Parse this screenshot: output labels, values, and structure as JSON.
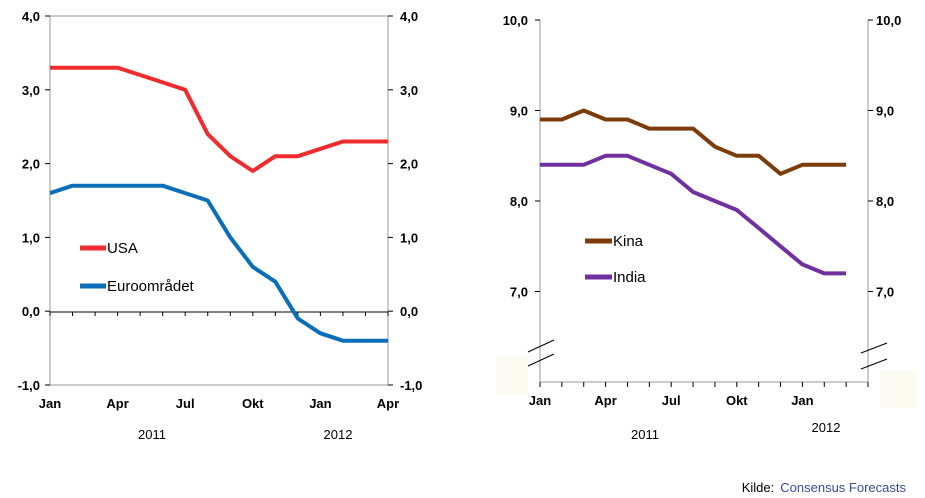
{
  "chart_data": [
    {
      "type": "line",
      "x": [
        "Jan",
        "Feb",
        "Mar",
        "Apr",
        "May",
        "Jun",
        "Jul",
        "Aug",
        "Sep",
        "Oct",
        "Nov",
        "Dec",
        "Jan",
        "Feb",
        "Mar",
        "Apr"
      ],
      "x_tick_labels": [
        "Jan",
        "Apr",
        "Jul",
        "Okt",
        "Jan",
        "Apr"
      ],
      "years": [
        "2011",
        "2012"
      ],
      "ylim": [
        -1.0,
        4.0
      ],
      "y_tick_labels": [
        "4,0",
        "3,0",
        "2,0",
        "1,0",
        "0,0",
        "-1,0"
      ],
      "legend_position": "left-middle",
      "series": [
        {
          "name": "USA",
          "color": "#ef2b2d",
          "values": [
            3.3,
            3.3,
            3.3,
            3.3,
            3.2,
            3.1,
            3.0,
            2.4,
            2.1,
            1.9,
            2.1,
            2.1,
            2.2,
            2.3,
            2.3,
            2.3
          ]
        },
        {
          "name": "Euroområdet",
          "color": "#0a6eb8",
          "values": [
            1.6,
            1.7,
            1.7,
            1.7,
            1.7,
            1.7,
            1.6,
            1.5,
            1.0,
            0.6,
            0.4,
            -0.1,
            -0.3,
            -0.4,
            -0.4,
            -0.4
          ]
        }
      ]
    },
    {
      "type": "line",
      "x": [
        "Jan",
        "Feb",
        "Mar",
        "Apr",
        "May",
        "Jun",
        "Jul",
        "Aug",
        "Sep",
        "Oct",
        "Nov",
        "Dec",
        "Jan",
        "Feb",
        "Mar"
      ],
      "x_tick_labels": [
        "Jan",
        "Apr",
        "Jul",
        "Okt",
        "Jan"
      ],
      "years": [
        "2011",
        "2012"
      ],
      "ylim": [
        6.0,
        10.0
      ],
      "axis_break": true,
      "y_tick_labels": [
        "10,0",
        "9,0",
        "8,0",
        "7,0"
      ],
      "legend_position": "left-middle",
      "series": [
        {
          "name": "Kina",
          "color": "#7b3b0b",
          "values": [
            8.9,
            8.9,
            9.0,
            8.9,
            8.9,
            8.8,
            8.8,
            8.8,
            8.6,
            8.5,
            8.5,
            8.3,
            8.4,
            8.4,
            8.4
          ]
        },
        {
          "name": "India",
          "color": "#7030a0",
          "values": [
            8.4,
            8.4,
            8.4,
            8.5,
            8.5,
            8.4,
            8.3,
            8.1,
            8.0,
            7.9,
            7.7,
            7.5,
            7.3,
            7.2,
            7.2
          ]
        }
      ]
    }
  ],
  "source": {
    "label": "Kilde:",
    "value": "Consensus Forecasts",
    "value_color": "#3a4a9a"
  }
}
